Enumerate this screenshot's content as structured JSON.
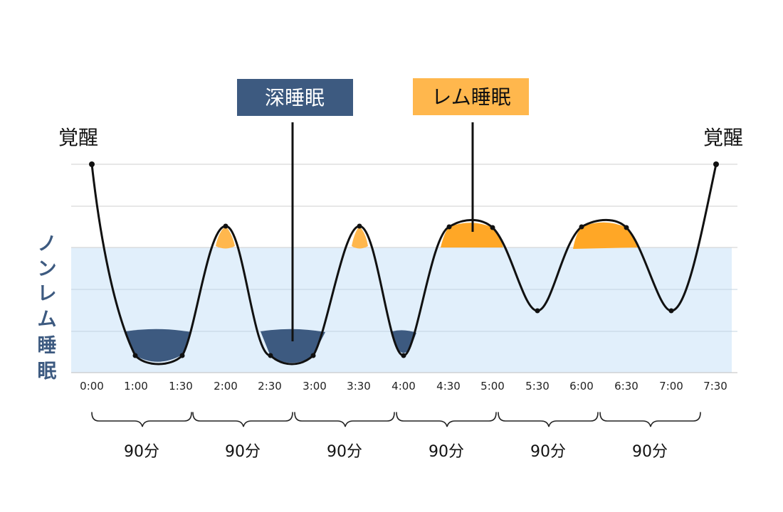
{
  "labels": {
    "wake_left": "覚醒",
    "wake_right": "覚醒",
    "deep_sleep": "深睡眠",
    "rem_sleep": "レム睡眠",
    "non_rem_chars": [
      "ノ",
      "ン",
      "レ",
      "ム",
      "睡",
      "眠"
    ]
  },
  "x_axis": {
    "ticks": [
      "0:00",
      "1:00",
      "1:30",
      "2:00",
      "2:30",
      "3:00",
      "3:30",
      "4:00",
      "4:30",
      "5:00",
      "5:30",
      "6:00",
      "6:30",
      "7:00",
      "7:30"
    ]
  },
  "cycles": [
    {
      "label": "90分"
    },
    {
      "label": "90分"
    },
    {
      "label": "90分"
    },
    {
      "label": "90分"
    },
    {
      "label": "90分"
    },
    {
      "label": "90分"
    }
  ],
  "colors": {
    "deep_sleep": "#3d5a80",
    "rem_sleep": "#ffa726",
    "rem_sleep_light": "#ffb74d",
    "non_rem_band": "#e1effb",
    "curve": "#111111",
    "gridline": "#c9c9c9"
  }
}
